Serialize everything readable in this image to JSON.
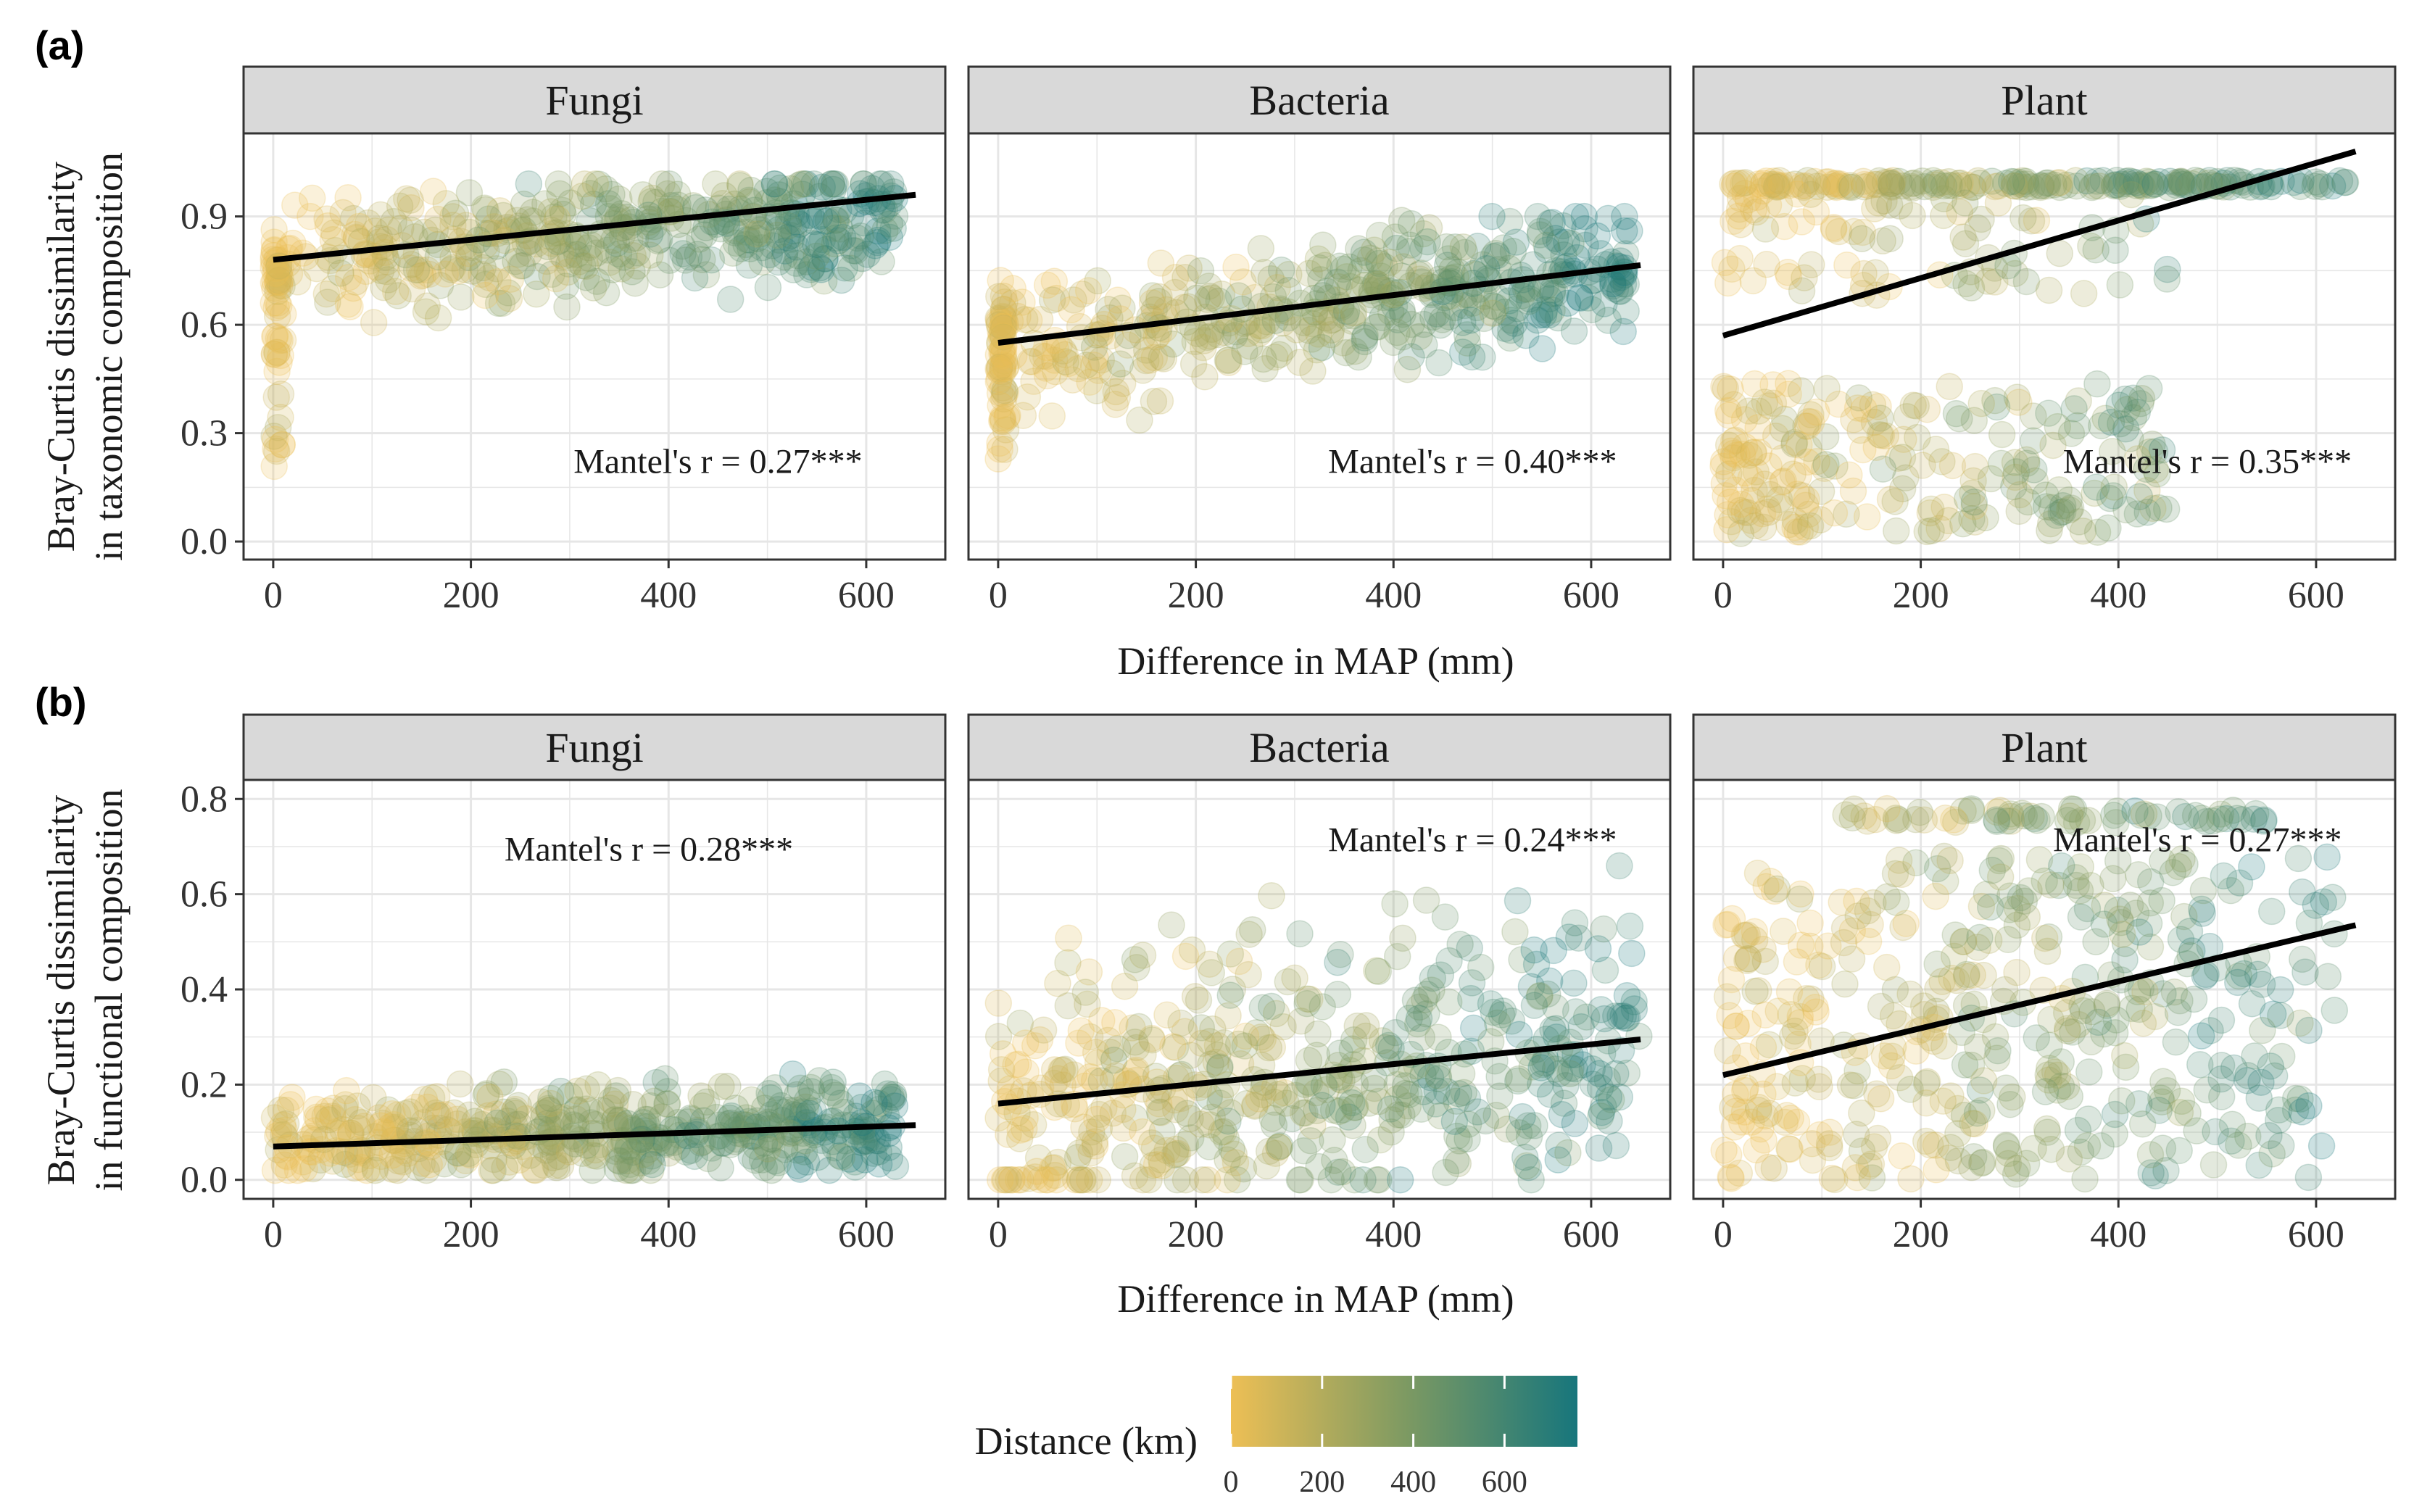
{
  "colors": {
    "low": "#EDBF55",
    "mid": "#7E9A62",
    "high": "#17767C",
    "strip_fill": "#D9D9D9",
    "strip_border": "#333333",
    "grid": "#E6E6E6",
    "trend": "#000000"
  },
  "chart_data": [
    {
      "id": "a",
      "panel_label": "(a)",
      "type": "scatter",
      "ylabel_line1": "Bray-Curtis dissimilarity",
      "ylabel_line2": "in taxonomic composition",
      "xlabel": "Difference in MAP (mm)",
      "xlim": [
        -30,
        680
      ],
      "ylim": [
        -0.05,
        1.13
      ],
      "xticks": [
        0,
        200,
        400,
        600
      ],
      "xtick_labels": [
        "0",
        "200",
        "400",
        "600"
      ],
      "yticks": [
        0.0,
        0.3,
        0.6,
        0.9
      ],
      "ytick_labels": [
        "0.0",
        "0.3",
        "0.6",
        "0.9"
      ],
      "facets": [
        {
          "title": "Fungi",
          "annotation": "Mantel's r = 0.27***",
          "annotation_x": 450,
          "annotation_y": 0.19,
          "trend": {
            "x": [
              0,
              650
            ],
            "y": [
              0.78,
              0.96
            ]
          }
        },
        {
          "title": "Bacteria",
          "annotation": "Mantel's r = 0.40***",
          "annotation_x": 480,
          "annotation_y": 0.19,
          "trend": {
            "x": [
              0,
              650
            ],
            "y": [
              0.55,
              0.765
            ]
          }
        },
        {
          "title": "Plant",
          "annotation": "Mantel's r = 0.35***",
          "annotation_x": 490,
          "annotation_y": 0.19,
          "trend": {
            "x": [
              0,
              640
            ],
            "y": [
              0.57,
              1.08
            ]
          }
        }
      ]
    },
    {
      "id": "b",
      "panel_label": "(b)",
      "type": "scatter",
      "ylabel_line1": "Bray-Curtis dissimilarity",
      "ylabel_line2": "in functional composition",
      "xlabel": "Difference in MAP (mm)",
      "xlim": [
        -30,
        680
      ],
      "ylim": [
        -0.04,
        0.84
      ],
      "xticks": [
        0,
        200,
        400,
        600
      ],
      "xtick_labels": [
        "0",
        "200",
        "400",
        "600"
      ],
      "yticks": [
        0.0,
        0.2,
        0.4,
        0.6,
        0.8
      ],
      "ytick_labels": [
        "0.0",
        "0.2",
        "0.4",
        "0.6",
        "0.8"
      ],
      "facets": [
        {
          "title": "Fungi",
          "annotation": "Mantel's r = 0.28***",
          "annotation_x": 380,
          "annotation_y": 0.67,
          "trend": {
            "x": [
              0,
              650
            ],
            "y": [
              0.07,
              0.115
            ]
          }
        },
        {
          "title": "Bacteria",
          "annotation": "Mantel's r = 0.24***",
          "annotation_x": 480,
          "annotation_y": 0.69,
          "trend": {
            "x": [
              0,
              650
            ],
            "y": [
              0.16,
              0.295
            ]
          }
        },
        {
          "title": "Plant",
          "annotation": "Mantel's r = 0.27***",
          "annotation_x": 480,
          "annotation_y": 0.69,
          "trend": {
            "x": [
              0,
              640
            ],
            "y": [
              0.22,
              0.535
            ]
          }
        }
      ]
    }
  ],
  "legend": {
    "title": "Distance (km)",
    "range": [
      0,
      760
    ],
    "ticks": [
      0,
      200,
      400,
      600
    ],
    "tick_labels": [
      "0",
      "200",
      "400",
      "600"
    ]
  }
}
